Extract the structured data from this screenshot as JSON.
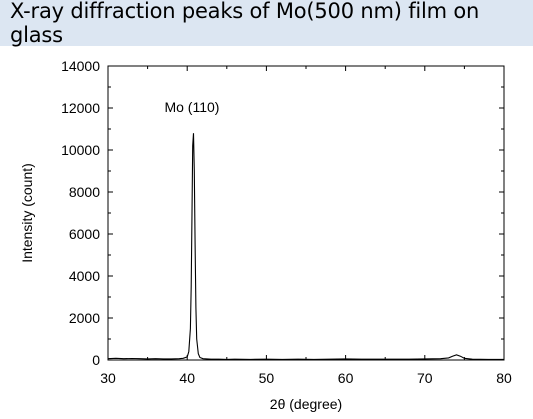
{
  "chart_data": {
    "type": "line",
    "title": "X-ray diffraction peaks of Mo(500 nm) film on glass",
    "xlabel": "2θ (degree)",
    "ylabel": "Intensity (count)",
    "xlim": [
      30,
      80
    ],
    "ylim": [
      0,
      14000
    ],
    "x_ticks": [
      30,
      40,
      50,
      60,
      70,
      80
    ],
    "y_ticks": [
      0,
      2000,
      4000,
      6000,
      8000,
      10000,
      12000,
      14000
    ],
    "grid": false,
    "legend": "none",
    "line_color": "#000000",
    "annotations": [
      {
        "text": "Mo (110)",
        "x": 40.6,
        "y": 11800
      }
    ],
    "series": [
      {
        "x": [
          30,
          31,
          32,
          33,
          34,
          35,
          36,
          37,
          38,
          39,
          39.5,
          40,
          40.2,
          40.4,
          40.5,
          40.6,
          40.7,
          40.8,
          40.9,
          41.0,
          41.1,
          41.2,
          41.4,
          41.6,
          42,
          43,
          44,
          45,
          46,
          48,
          50,
          52,
          54,
          56,
          58,
          60,
          62,
          64,
          66,
          68,
          70,
          72,
          73,
          73.5,
          74,
          74.5,
          75,
          76,
          78,
          80
        ],
        "y": [
          60,
          80,
          60,
          70,
          60,
          50,
          60,
          50,
          50,
          60,
          80,
          150,
          400,
          1500,
          3500,
          7000,
          10200,
          10800,
          9000,
          5500,
          2500,
          1000,
          300,
          120,
          60,
          40,
          40,
          30,
          40,
          30,
          40,
          30,
          40,
          30,
          40,
          50,
          40,
          40,
          40,
          40,
          50,
          60,
          100,
          180,
          250,
          180,
          80,
          40,
          30,
          30
        ]
      }
    ]
  }
}
